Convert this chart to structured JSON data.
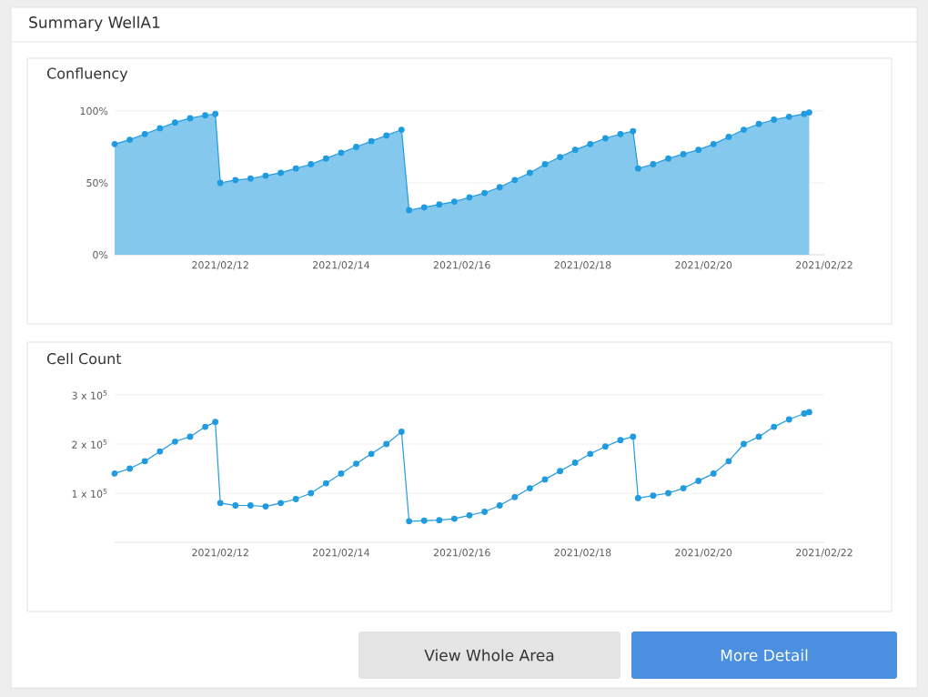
{
  "chart_data": [
    {
      "type": "other",
      "title": "Summary WellA1",
      "annotations": [
        "View Whole Area",
        "More Detail"
      ]
    },
    {
      "type": "area",
      "title": "Confluency",
      "color": "#1f9be0",
      "marker": "circle",
      "grid": "y",
      "xlim": [
        "2021-02-10T06:00",
        "2021-02-22T00:00"
      ],
      "ylim": [
        0,
        100
      ],
      "yticks": [
        {
          "value": 0,
          "label": "0%"
        },
        {
          "value": 50,
          "label": "50%"
        },
        {
          "value": 100,
          "label": "100%"
        }
      ],
      "xticks": [
        {
          "value": "2021-02-12",
          "label": "2021/02/12"
        },
        {
          "value": "2021-02-14",
          "label": "2021/02/14"
        },
        {
          "value": "2021-02-16",
          "label": "2021/02/16"
        },
        {
          "value": "2021-02-18",
          "label": "2021/02/18"
        },
        {
          "value": "2021-02-20",
          "label": "2021/02/20"
        },
        {
          "value": "2021-02-22",
          "label": "2021/02/22"
        }
      ],
      "x": [
        "2021-02-10T06:00",
        "2021-02-10T12:00",
        "2021-02-10T18:00",
        "2021-02-11T00:00",
        "2021-02-11T06:00",
        "2021-02-11T12:00",
        "2021-02-11T18:00",
        "2021-02-11T22:00",
        "2021-02-12T00:00",
        "2021-02-12T06:00",
        "2021-02-12T12:00",
        "2021-02-12T18:00",
        "2021-02-13T00:00",
        "2021-02-13T06:00",
        "2021-02-13T12:00",
        "2021-02-13T18:00",
        "2021-02-14T00:00",
        "2021-02-14T06:00",
        "2021-02-14T12:00",
        "2021-02-14T18:00",
        "2021-02-15T00:00",
        "2021-02-15T03:00",
        "2021-02-15T09:00",
        "2021-02-15T15:00",
        "2021-02-15T21:00",
        "2021-02-16T03:00",
        "2021-02-16T09:00",
        "2021-02-16T15:00",
        "2021-02-16T21:00",
        "2021-02-17T03:00",
        "2021-02-17T09:00",
        "2021-02-17T15:00",
        "2021-02-17T21:00",
        "2021-02-18T03:00",
        "2021-02-18T09:00",
        "2021-02-18T15:00",
        "2021-02-18T20:00",
        "2021-02-18T22:00",
        "2021-02-19T04:00",
        "2021-02-19T10:00",
        "2021-02-19T16:00",
        "2021-02-19T22:00",
        "2021-02-20T04:00",
        "2021-02-20T10:00",
        "2021-02-20T16:00",
        "2021-02-20T22:00",
        "2021-02-21T04:00",
        "2021-02-21T10:00",
        "2021-02-21T16:00",
        "2021-02-21T18:00"
      ],
      "values": [
        77,
        80,
        84,
        88,
        92,
        95,
        97,
        98,
        50,
        52,
        53,
        55,
        57,
        60,
        63,
        67,
        71,
        75,
        79,
        83,
        87,
        31,
        33,
        35,
        37,
        40,
        43,
        47,
        52,
        57,
        63,
        68,
        73,
        77,
        81,
        84,
        86,
        60,
        63,
        67,
        70,
        73,
        77,
        82,
        87,
        91,
        94,
        96,
        98,
        99
      ]
    },
    {
      "type": "line",
      "title": "Cell Count",
      "color": "#1f9be0",
      "marker": "circle",
      "grid": "y",
      "xlim": [
        "2021-02-10T06:00",
        "2021-02-22T00:00"
      ],
      "ylim": [
        0,
        300000
      ],
      "yticks": [
        {
          "value": 100000,
          "label": "1 x 10$^{5}$"
        },
        {
          "value": 200000,
          "label": "2 x 10$^{5}$"
        },
        {
          "value": 300000,
          "label": "3 x 10$^{5}$"
        }
      ],
      "xticks": [
        {
          "value": "2021-02-12",
          "label": "2021/02/12"
        },
        {
          "value": "2021-02-14",
          "label": "2021/02/14"
        },
        {
          "value": "2021-02-16",
          "label": "2021/02/16"
        },
        {
          "value": "2021-02-18",
          "label": "2021/02/18"
        },
        {
          "value": "2021-02-20",
          "label": "2021/02/20"
        },
        {
          "value": "2021-02-22",
          "label": "2021/02/22"
        }
      ],
      "x": [
        "2021-02-10T06:00",
        "2021-02-10T12:00",
        "2021-02-10T18:00",
        "2021-02-11T00:00",
        "2021-02-11T06:00",
        "2021-02-11T12:00",
        "2021-02-11T18:00",
        "2021-02-11T22:00",
        "2021-02-12T00:00",
        "2021-02-12T06:00",
        "2021-02-12T12:00",
        "2021-02-12T18:00",
        "2021-02-13T00:00",
        "2021-02-13T06:00",
        "2021-02-13T12:00",
        "2021-02-13T18:00",
        "2021-02-14T00:00",
        "2021-02-14T06:00",
        "2021-02-14T12:00",
        "2021-02-14T18:00",
        "2021-02-15T00:00",
        "2021-02-15T03:00",
        "2021-02-15T09:00",
        "2021-02-15T15:00",
        "2021-02-15T21:00",
        "2021-02-16T03:00",
        "2021-02-16T09:00",
        "2021-02-16T15:00",
        "2021-02-16T21:00",
        "2021-02-17T03:00",
        "2021-02-17T09:00",
        "2021-02-17T15:00",
        "2021-02-17T21:00",
        "2021-02-18T03:00",
        "2021-02-18T09:00",
        "2021-02-18T15:00",
        "2021-02-18T20:00",
        "2021-02-18T22:00",
        "2021-02-19T04:00",
        "2021-02-19T10:00",
        "2021-02-19T16:00",
        "2021-02-19T22:00",
        "2021-02-20T04:00",
        "2021-02-20T10:00",
        "2021-02-20T16:00",
        "2021-02-20T22:00",
        "2021-02-21T04:00",
        "2021-02-21T10:00",
        "2021-02-21T16:00",
        "2021-02-21T18:00"
      ],
      "values": [
        140000,
        150000,
        165000,
        185000,
        205000,
        215000,
        235000,
        245000,
        80000,
        75000,
        75000,
        73000,
        80000,
        88000,
        100000,
        120000,
        140000,
        160000,
        180000,
        200000,
        225000,
        43000,
        44000,
        45000,
        48000,
        55000,
        62000,
        75000,
        92000,
        110000,
        128000,
        145000,
        162000,
        180000,
        195000,
        208000,
        215000,
        90000,
        95000,
        100000,
        110000,
        125000,
        140000,
        165000,
        200000,
        215000,
        235000,
        250000,
        262000,
        265000
      ]
    }
  ]
}
